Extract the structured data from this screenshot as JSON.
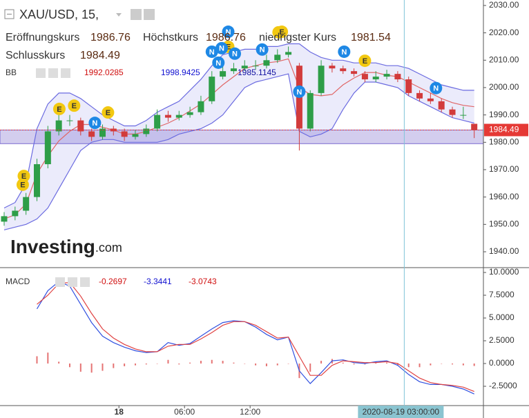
{
  "header": {
    "symbol": "XAU/USD, 15,",
    "ohlc": [
      {
        "label": "Eröffnungskurs",
        "value": 1986.76
      },
      {
        "label": "Höchstkurs",
        "value": 1986.76
      },
      {
        "label": "niedrigster Kurs",
        "value": 1981.54
      },
      {
        "label": "Schlusskurs",
        "value": 1984.49
      }
    ]
  },
  "chart_data": [
    {
      "type": "candlestick",
      "up_color": "#2e9e48",
      "down_color": "#d23b3b",
      "open": [
        1951,
        1953,
        1955,
        1960,
        1972,
        1984,
        1988,
        1988,
        1984,
        1982,
        1985,
        1984,
        1982,
        1983,
        1985,
        1990,
        1989,
        1990,
        1991,
        1995,
        2004,
        2006,
        2007,
        2008,
        2008,
        2010,
        2012,
        2008,
        1985,
        1998,
        2008,
        2007,
        2006,
        2005,
        2003,
        2004,
        2005,
        2003,
        1998,
        1996,
        1995,
        1992,
        1990,
        1986.76
      ],
      "high": [
        1954.5,
        1956.5,
        1961.5,
        1974,
        1986,
        1990,
        1990,
        1989,
        1985,
        1986.5,
        1986,
        1985,
        1984.5,
        1986.5,
        1992,
        1991.5,
        1991.5,
        1993,
        1997,
        2006,
        2008,
        2009,
        2010,
        2010,
        2012,
        2014,
        2015,
        2009,
        1999,
        2010,
        2009,
        2008,
        2007,
        2006,
        2006,
        2006.5,
        2006,
        2004,
        1999,
        1998,
        1996,
        1993,
        1993,
        1986.76
      ],
      "low": [
        1949.5,
        1951.5,
        1953.5,
        1958.5,
        1970.5,
        1982.5,
        1986,
        1982.5,
        1980.5,
        1981,
        1982.5,
        1980.5,
        1981,
        1982,
        1984,
        1987.5,
        1988,
        1989,
        1990,
        1994,
        2003,
        2005,
        2006,
        2006.5,
        2007,
        2009,
        2011,
        1977,
        1984,
        1997,
        2005.5,
        2005,
        2004,
        2002,
        2002,
        2003,
        2002,
        1997,
        1995,
        1994,
        1991,
        1989,
        1988.5,
        1981.54
      ],
      "close": [
        1953,
        1955,
        1960,
        1972,
        1984,
        1988,
        1988,
        1984,
        1982,
        1985,
        1984,
        1982,
        1983,
        1985,
        1990,
        1989,
        1990,
        1991,
        1995,
        2004,
        2006,
        2007,
        2008,
        2008,
        2010,
        2012,
        2013,
        1985,
        1998,
        2008,
        2007,
        2006,
        2005,
        2003,
        2004,
        2005,
        2003,
        1998,
        1996,
        1995,
        1992,
        1990,
        1990,
        1984.49
      ],
      "ylim": [
        1934.2,
        2032.0
      ],
      "yticks": [
        {
          "value": 1940,
          "label": "1940.00"
        },
        {
          "value": 1950,
          "label": "1950.00"
        },
        {
          "value": 1960,
          "label": "1960.00"
        },
        {
          "value": 1970,
          "label": "1970.00"
        },
        {
          "value": 1980,
          "label": "1980.00"
        },
        {
          "value": 1990,
          "label": "1990.00"
        },
        {
          "value": 2000,
          "label": "2000.00"
        },
        {
          "value": 2010,
          "label": "2010.00"
        },
        {
          "value": 2020,
          "label": "2020.00"
        },
        {
          "value": 2030,
          "label": "2030.00"
        }
      ],
      "last_price": {
        "value": 1984.49,
        "color": "#e53935"
      },
      "zone": [
        1979.5,
        1984.49
      ],
      "indicator": {
        "name": "BB",
        "readout": [
          1992.0285,
          1998.9425,
          1985.1145
        ],
        "readout_colors": [
          "#d01010",
          "#1010d0",
          "#1010a0"
        ]
      },
      "series": [
        {
          "color": "#e06666",
          "values": [
            1952,
            1953.5,
            1957.5,
            1968.5,
            1975,
            1980.5,
            1984,
            1986.5,
            1986.5,
            1985.5,
            1984.5,
            1983,
            1983,
            1984,
            1985.5,
            1987,
            1989,
            1991.5,
            1994,
            1997.5,
            2001,
            2004,
            2007,
            2008,
            2009,
            2009.5,
            2010.5,
            2000,
            1997.5,
            1997,
            1997.5,
            2001,
            2003.5,
            2005.5,
            2005.5,
            2004.5,
            2004,
            2002,
            2000,
            1998,
            1996,
            1994.5,
            1993.5,
            1993
          ]
        },
        {
          "color": "#6a6ae0",
          "values": [
            1956,
            1958,
            1965,
            1985,
            1994,
            1998,
            1998,
            1996,
            1993,
            1990,
            1988,
            1986,
            1986,
            1988,
            1991,
            1993,
            1995,
            1999,
            2003,
            2008,
            2012,
            2013,
            2014,
            2014,
            2015,
            2015,
            2016,
            2016,
            2013,
            2011,
            2010,
            2010,
            2009,
            2009,
            2009,
            2008,
            2008,
            2007,
            2005,
            2003,
            2001,
            2000,
            1999,
            1999
          ]
        },
        {
          "color": "#6a6ae0",
          "values": [
            1948,
            1949,
            1950,
            1952,
            1956,
            1963,
            1970,
            1977,
            1980,
            1981,
            1981,
            1980,
            1980,
            1980,
            1980,
            1981,
            1983,
            1984,
            1985,
            1987,
            1990,
            1995,
            2000,
            2002,
            2003,
            2004,
            2005,
            1984,
            1982,
            1983,
            1985,
            1992,
            1998,
            2002,
            2002,
            2001,
            2000,
            1997,
            1995,
            1993,
            1991,
            1989,
            1988,
            1987
          ]
        }
      ],
      "events": [
        {
          "label": "E",
          "x": 1.7,
          "y": 1964.5,
          "color": "#f2c811"
        },
        {
          "label": "E",
          "x": 1.8,
          "y": 1967.7,
          "color": "#f2c811"
        },
        {
          "label": "E",
          "x": 5.05,
          "y": 1992.2,
          "color": "#f2c811"
        },
        {
          "label": "E",
          "x": 6.4,
          "y": 1993.4,
          "color": "#f2c811"
        },
        {
          "label": "E",
          "x": 9.5,
          "y": 1990.9,
          "color": "#f2c811"
        },
        {
          "label": "E",
          "x": 20.5,
          "y": 2014.9,
          "color": "#f2c811"
        },
        {
          "label": "E",
          "x": 25.1,
          "y": 2020.2,
          "color": "#f2c811"
        },
        {
          "label": "E",
          "x": 25.4,
          "y": 2020.4,
          "color": "#f2c811"
        },
        {
          "label": "E",
          "x": 33,
          "y": 2009.8,
          "color": "#f2c811"
        },
        {
          "label": "N",
          "x": 8.3,
          "y": 1987.1,
          "color": "#1e88e5"
        },
        {
          "label": "N",
          "x": 19,
          "y": 2013.1,
          "color": "#1e88e5"
        },
        {
          "label": "N",
          "x": 19.6,
          "y": 2009.1,
          "color": "#1e88e5"
        },
        {
          "label": "N",
          "x": 19.9,
          "y": 2014.4,
          "color": "#1e88e5"
        },
        {
          "label": "N",
          "x": 20.5,
          "y": 2020.4,
          "color": "#1e88e5"
        },
        {
          "label": "N",
          "x": 21.1,
          "y": 2012.4,
          "color": "#1e88e5"
        },
        {
          "label": "N",
          "x": 23.6,
          "y": 2013.9,
          "color": "#1e88e5"
        },
        {
          "label": "N",
          "x": 27,
          "y": 1998.5,
          "color": "#1e88e5"
        },
        {
          "label": "N",
          "x": 31.1,
          "y": 2013.1,
          "color": "#1e88e5"
        },
        {
          "label": "N",
          "x": 39.5,
          "y": 1999.8,
          "color": "#1e88e5"
        }
      ],
      "logo": {
        "name": "Investing",
        "suffix": ".com"
      }
    },
    {
      "type": "macd",
      "name": "MACD",
      "readout": [
        -0.2697,
        -3.3441,
        -3.0743
      ],
      "readout_colors": [
        "#d01010",
        "#1010d0",
        "#d01010"
      ],
      "ylim": [
        -4.62,
        10.38
      ],
      "yticks": [
        {
          "value": -2.5,
          "label": "-2.5000"
        },
        {
          "value": 0,
          "label": "0.0000"
        },
        {
          "value": 2.5,
          "label": "2.5000"
        },
        {
          "value": 5,
          "label": "5.0000"
        },
        {
          "value": 7.5,
          "label": "7.5000"
        },
        {
          "value": 10,
          "label": "10.0000"
        }
      ],
      "histogram": {
        "color": "#e57373",
        "values": [
          null,
          null,
          null,
          0.8,
          1.2,
          0.2,
          -0.4,
          -0.9,
          -1.0,
          -0.8,
          -0.5,
          -0.3,
          -0.2,
          -0.1,
          0,
          0.4,
          -0.1,
          0.1,
          0.3,
          0.4,
          0.3,
          0.1,
          0,
          -0.2,
          -0.3,
          -0.2,
          0,
          -1.6,
          -0.9,
          0.3,
          0.5,
          0.1,
          -0.1,
          -0.1,
          0.1,
          0.1,
          -0.2,
          -0.4,
          -0.4,
          -0.2,
          0,
          -0.1,
          -0.2,
          -0.27
        ]
      },
      "series": [
        {
          "color": "#3050e0",
          "values": [
            null,
            null,
            null,
            6.0,
            8.0,
            9.0,
            8.5,
            6.5,
            4.5,
            3.0,
            2.3,
            1.8,
            1.4,
            1.2,
            1.3,
            2.3,
            2.0,
            2.2,
            3.0,
            3.8,
            4.5,
            4.7,
            4.6,
            4.0,
            3.2,
            2.6,
            2.9,
            -0.8,
            -2.2,
            -1.0,
            0.3,
            0.4,
            0.1,
            0,
            0.2,
            0.3,
            -0.2,
            -1.2,
            -2.0,
            -2.3,
            -2.3,
            -2.5,
            -2.8,
            -3.3441
          ]
        },
        {
          "color": "#e04040",
          "values": [
            null,
            null,
            null,
            6.5,
            7.5,
            8.8,
            8.9,
            7.4,
            5.5,
            3.8,
            2.8,
            2.1,
            1.6,
            1.3,
            1.3,
            1.9,
            2.1,
            2.1,
            2.7,
            3.4,
            4.2,
            4.6,
            4.6,
            4.2,
            3.5,
            2.8,
            2.9,
            0.8,
            -1.3,
            -1.3,
            -0.2,
            0.3,
            0.2,
            0.1,
            0.1,
            0.2,
            0,
            -0.8,
            -1.6,
            -2.1,
            -2.3,
            -2.4,
            -2.6,
            -3.0743
          ]
        }
      ]
    }
  ],
  "xaxis": {
    "xticks": [
      {
        "value": 10.5,
        "label": "18"
      },
      {
        "value": 16.5,
        "label": "06:00"
      },
      {
        "value": 22.5,
        "label": "12:00"
      }
    ],
    "crosshair": {
      "value": 36.6,
      "label": "2020-08-19 03:00:00"
    }
  }
}
